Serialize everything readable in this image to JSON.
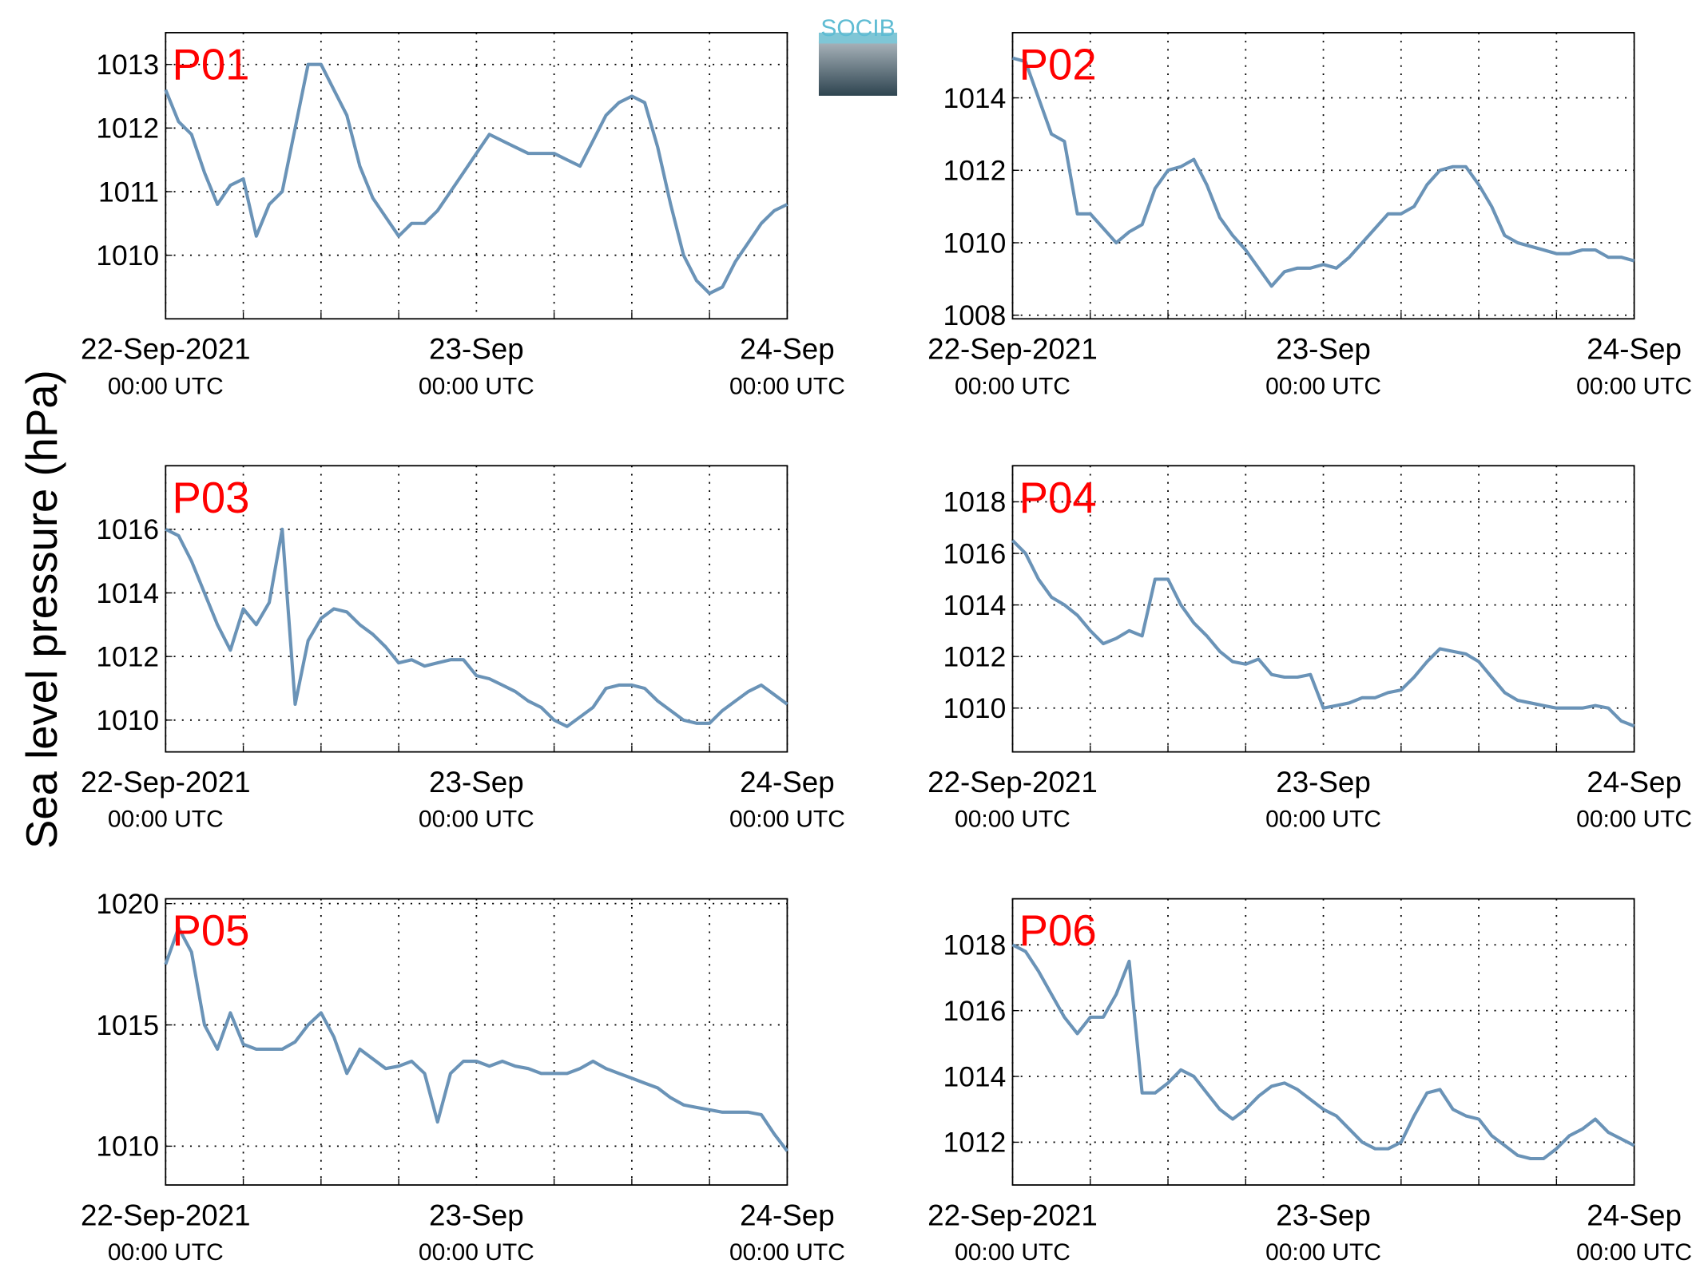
{
  "ylabel": "Sea level pressure (hPa)",
  "logo": "SOCIB",
  "chart_data": [
    {
      "type": "line",
      "title": "P01",
      "color": "#6a93b7",
      "xlim": [
        0,
        48
      ],
      "ylim": [
        1009,
        1013.5
      ],
      "yticks": [
        1010,
        1011,
        1012,
        1013
      ],
      "grid": true,
      "xticks": [
        {
          "value": 0,
          "label": "22-Sep-2021",
          "sublabel": "00:00 UTC"
        },
        {
          "value": 24,
          "label": "23-Sep",
          "sublabel": "00:00 UTC"
        },
        {
          "value": 48,
          "label": "24-Sep",
          "sublabel": "00:00 UTC"
        }
      ],
      "xminor_ticks": [
        6,
        12,
        18,
        30,
        36,
        42
      ],
      "x": [
        0,
        1,
        2,
        3,
        4,
        5,
        6,
        7,
        8,
        9,
        10,
        11,
        12,
        13,
        14,
        15,
        16,
        17,
        18,
        19,
        20,
        21,
        22,
        23,
        24,
        25,
        26,
        27,
        28,
        29,
        30,
        31,
        32,
        33,
        34,
        35,
        36,
        37,
        38,
        39,
        40,
        41,
        42,
        43,
        44,
        45,
        46,
        47,
        48
      ],
      "values": [
        1012.6,
        1012.1,
        1011.9,
        1011.3,
        1010.8,
        1011.1,
        1011.2,
        1010.3,
        1010.8,
        1011.0,
        1012.0,
        1013.0,
        1013.0,
        1012.6,
        1012.2,
        1011.4,
        1010.9,
        1010.6,
        1010.3,
        1010.5,
        1010.5,
        1010.7,
        1011.0,
        1011.3,
        1011.6,
        1011.9,
        1011.8,
        1011.7,
        1011.6,
        1011.6,
        1011.6,
        1011.5,
        1011.4,
        1011.8,
        1012.2,
        1012.4,
        1012.5,
        1012.4,
        1011.7,
        1010.8,
        1010.0,
        1009.6,
        1009.4,
        1009.5,
        1009.9,
        1010.2,
        1010.5,
        1010.7,
        1010.8
      ]
    },
    {
      "type": "line",
      "title": "P02",
      "color": "#6a93b7",
      "xlim": [
        0,
        48
      ],
      "ylim": [
        1007.9,
        1015.8
      ],
      "yticks": [
        1008,
        1010,
        1012,
        1014
      ],
      "grid": true,
      "xticks": [
        {
          "value": 0,
          "label": "22-Sep-2021",
          "sublabel": "00:00 UTC"
        },
        {
          "value": 24,
          "label": "23-Sep",
          "sublabel": "00:00 UTC"
        },
        {
          "value": 48,
          "label": "24-Sep",
          "sublabel": "00:00 UTC"
        }
      ],
      "xminor_ticks": [
        6,
        12,
        18,
        30,
        36,
        42
      ],
      "x": [
        0,
        1,
        2,
        3,
        4,
        5,
        6,
        7,
        8,
        9,
        10,
        11,
        12,
        13,
        14,
        15,
        16,
        17,
        18,
        19,
        20,
        21,
        22,
        23,
        24,
        25,
        26,
        27,
        28,
        29,
        30,
        31,
        32,
        33,
        34,
        35,
        36,
        37,
        38,
        39,
        40,
        41,
        42,
        43,
        44,
        45,
        46,
        47,
        48
      ],
      "values": [
        1015.1,
        1015.0,
        1014.0,
        1013.0,
        1012.8,
        1010.8,
        1010.8,
        1010.4,
        1010.0,
        1010.3,
        1010.5,
        1011.5,
        1012.0,
        1012.1,
        1012.3,
        1011.6,
        1010.7,
        1010.2,
        1009.8,
        1009.3,
        1008.8,
        1009.2,
        1009.3,
        1009.3,
        1009.4,
        1009.3,
        1009.6,
        1010.0,
        1010.4,
        1010.8,
        1010.8,
        1011.0,
        1011.6,
        1012.0,
        1012.1,
        1012.1,
        1011.6,
        1011.0,
        1010.2,
        1010.0,
        1009.9,
        1009.8,
        1009.7,
        1009.7,
        1009.8,
        1009.8,
        1009.6,
        1009.6,
        1009.5
      ]
    },
    {
      "type": "line",
      "title": "P03",
      "color": "#6a93b7",
      "xlim": [
        0,
        48
      ],
      "ylim": [
        1009,
        1018
      ],
      "yticks": [
        1010,
        1012,
        1014,
        1016
      ],
      "grid": true,
      "xticks": [
        {
          "value": 0,
          "label": "22-Sep-2021",
          "sublabel": "00:00 UTC"
        },
        {
          "value": 24,
          "label": "23-Sep",
          "sublabel": "00:00 UTC"
        },
        {
          "value": 48,
          "label": "24-Sep",
          "sublabel": "00:00 UTC"
        }
      ],
      "xminor_ticks": [
        6,
        12,
        18,
        30,
        36,
        42
      ],
      "x": [
        0,
        1,
        2,
        3,
        4,
        5,
        6,
        7,
        8,
        9,
        10,
        11,
        12,
        13,
        14,
        15,
        16,
        17,
        18,
        19,
        20,
        21,
        22,
        23,
        24,
        25,
        26,
        27,
        28,
        29,
        30,
        31,
        32,
        33,
        34,
        35,
        36,
        37,
        38,
        39,
        40,
        41,
        42,
        43,
        44,
        45,
        46,
        47,
        48
      ],
      "values": [
        1016.0,
        1015.8,
        1015.0,
        1014.0,
        1013.0,
        1012.2,
        1013.5,
        1013.0,
        1013.7,
        1016.0,
        1010.5,
        1012.5,
        1013.2,
        1013.5,
        1013.4,
        1013.0,
        1012.7,
        1012.3,
        1011.8,
        1011.9,
        1011.7,
        1011.8,
        1011.9,
        1011.9,
        1011.4,
        1011.3,
        1011.1,
        1010.9,
        1010.6,
        1010.4,
        1010.0,
        1009.8,
        1010.1,
        1010.4,
        1011.0,
        1011.1,
        1011.1,
        1011.0,
        1010.6,
        1010.3,
        1010.0,
        1009.9,
        1009.9,
        1010.3,
        1010.6,
        1010.9,
        1011.1,
        1010.8,
        1010.5
      ]
    },
    {
      "type": "line",
      "title": "P04",
      "color": "#6a93b7",
      "xlim": [
        0,
        48
      ],
      "ylim": [
        1008.3,
        1019.4
      ],
      "yticks": [
        1010,
        1012,
        1014,
        1016,
        1018
      ],
      "grid": true,
      "xticks": [
        {
          "value": 0,
          "label": "22-Sep-2021",
          "sublabel": "00:00 UTC"
        },
        {
          "value": 24,
          "label": "23-Sep",
          "sublabel": "00:00 UTC"
        },
        {
          "value": 48,
          "label": "24-Sep",
          "sublabel": "00:00 UTC"
        }
      ],
      "xminor_ticks": [
        6,
        12,
        18,
        30,
        36,
        42
      ],
      "x": [
        0,
        1,
        2,
        3,
        4,
        5,
        6,
        7,
        8,
        9,
        10,
        11,
        12,
        13,
        14,
        15,
        16,
        17,
        18,
        19,
        20,
        21,
        22,
        23,
        24,
        25,
        26,
        27,
        28,
        29,
        30,
        31,
        32,
        33,
        34,
        35,
        36,
        37,
        38,
        39,
        40,
        41,
        42,
        43,
        44,
        45,
        46,
        47,
        48
      ],
      "values": [
        1016.5,
        1016.0,
        1015.0,
        1014.3,
        1014.0,
        1013.6,
        1013.0,
        1012.5,
        1012.7,
        1013.0,
        1012.8,
        1015.0,
        1015.0,
        1014.0,
        1013.3,
        1012.8,
        1012.2,
        1011.8,
        1011.7,
        1011.9,
        1011.3,
        1011.2,
        1011.2,
        1011.3,
        1010.0,
        1010.1,
        1010.2,
        1010.4,
        1010.4,
        1010.6,
        1010.7,
        1011.2,
        1011.8,
        1012.3,
        1012.2,
        1012.1,
        1011.8,
        1011.2,
        1010.6,
        1010.3,
        1010.2,
        1010.1,
        1010.0,
        1010.0,
        1010.0,
        1010.1,
        1010.0,
        1009.5,
        1009.3
      ]
    },
    {
      "type": "line",
      "title": "P05",
      "color": "#6a93b7",
      "xlim": [
        0,
        48
      ],
      "ylim": [
        1008.4,
        1020.2
      ],
      "yticks": [
        1010,
        1015,
        1020
      ],
      "grid": true,
      "xticks": [
        {
          "value": 0,
          "label": "22-Sep-2021",
          "sublabel": "00:00 UTC"
        },
        {
          "value": 24,
          "label": "23-Sep",
          "sublabel": "00:00 UTC"
        },
        {
          "value": 48,
          "label": "24-Sep",
          "sublabel": "00:00 UTC"
        }
      ],
      "xminor_ticks": [
        6,
        12,
        18,
        30,
        36,
        42
      ],
      "x": [
        0,
        1,
        2,
        3,
        4,
        5,
        6,
        7,
        8,
        9,
        10,
        11,
        12,
        13,
        14,
        15,
        16,
        17,
        18,
        19,
        20,
        21,
        22,
        23,
        24,
        25,
        26,
        27,
        28,
        29,
        30,
        31,
        32,
        33,
        34,
        35,
        36,
        37,
        38,
        39,
        40,
        41,
        42,
        43,
        44,
        45,
        46,
        47,
        48
      ],
      "values": [
        1017.5,
        1019.0,
        1018.0,
        1015.0,
        1014.0,
        1015.5,
        1014.2,
        1014.0,
        1014.0,
        1014.0,
        1014.3,
        1015.0,
        1015.5,
        1014.5,
        1013.0,
        1014.0,
        1013.6,
        1013.2,
        1013.3,
        1013.5,
        1013.0,
        1011.0,
        1013.0,
        1013.5,
        1013.5,
        1013.3,
        1013.5,
        1013.3,
        1013.2,
        1013.0,
        1013.0,
        1013.0,
        1013.2,
        1013.5,
        1013.2,
        1013.0,
        1012.8,
        1012.6,
        1012.4,
        1012.0,
        1011.7,
        1011.6,
        1011.5,
        1011.4,
        1011.4,
        1011.4,
        1011.3,
        1010.5,
        1009.8
      ]
    },
    {
      "type": "line",
      "title": "P06",
      "color": "#6a93b7",
      "xlim": [
        0,
        48
      ],
      "ylim": [
        1010.7,
        1019.4
      ],
      "yticks": [
        1012,
        1014,
        1016,
        1018
      ],
      "grid": true,
      "xticks": [
        {
          "value": 0,
          "label": "22-Sep-2021",
          "sublabel": "00:00 UTC"
        },
        {
          "value": 24,
          "label": "23-Sep",
          "sublabel": "00:00 UTC"
        },
        {
          "value": 48,
          "label": "24-Sep",
          "sublabel": "00:00 UTC"
        }
      ],
      "xminor_ticks": [
        6,
        12,
        18,
        30,
        36,
        42
      ],
      "x": [
        0,
        1,
        2,
        3,
        4,
        5,
        6,
        7,
        8,
        9,
        10,
        11,
        12,
        13,
        14,
        15,
        16,
        17,
        18,
        19,
        20,
        21,
        22,
        23,
        24,
        25,
        26,
        27,
        28,
        29,
        30,
        31,
        32,
        33,
        34,
        35,
        36,
        37,
        38,
        39,
        40,
        41,
        42,
        43,
        44,
        45,
        46,
        47,
        48
      ],
      "values": [
        1018.0,
        1017.8,
        1017.2,
        1016.5,
        1015.8,
        1015.3,
        1015.8,
        1015.8,
        1016.5,
        1017.5,
        1013.5,
        1013.5,
        1013.8,
        1014.2,
        1014.0,
        1013.5,
        1013.0,
        1012.7,
        1013.0,
        1013.4,
        1013.7,
        1013.8,
        1013.6,
        1013.3,
        1013.0,
        1012.8,
        1012.4,
        1012.0,
        1011.8,
        1011.8,
        1012.0,
        1012.8,
        1013.5,
        1013.6,
        1013.0,
        1012.8,
        1012.7,
        1012.2,
        1011.9,
        1011.6,
        1011.5,
        1011.5,
        1011.8,
        1012.2,
        1012.4,
        1012.7,
        1012.3,
        1012.1,
        1011.9
      ]
    }
  ]
}
